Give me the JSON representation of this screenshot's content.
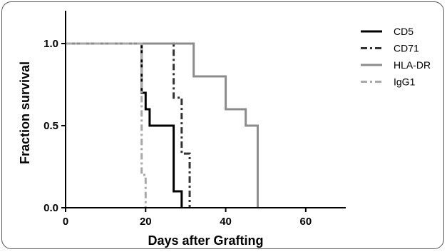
{
  "chart_data": {
    "type": "line",
    "subtype": "step (Kaplan-Meier survival curves)",
    "xlabel": "Days after Grafting",
    "ylabel": "Fraction survival",
    "xlim": [
      0,
      70
    ],
    "ylim": [
      0,
      1.2
    ],
    "x_ticks": [
      0,
      20,
      40,
      60
    ],
    "x_tick_labels": [
      "0",
      "20",
      "40",
      "60"
    ],
    "y_ticks": [
      0,
      0.5,
      1.0
    ],
    "y_tick_labels": [
      "0.0",
      "0.5",
      "1.0"
    ],
    "grid": false,
    "legend_position": "top-right",
    "series": [
      {
        "name": "CD5",
        "color": "#000000",
        "line_style": "solid",
        "steps": [
          [
            0,
            1.0
          ],
          [
            19,
            0.7
          ],
          [
            20,
            0.6
          ],
          [
            21,
            0.5
          ],
          [
            27,
            0.1
          ],
          [
            29,
            0.0
          ]
        ]
      },
      {
        "name": "CD71",
        "color": "#333333",
        "line_style": "dash-dot",
        "steps": [
          [
            0,
            1.0
          ],
          [
            27,
            0.67
          ],
          [
            29,
            0.33
          ],
          [
            31,
            0.0
          ]
        ]
      },
      {
        "name": "HLA-DR",
        "color": "#8c8c8c",
        "line_style": "solid",
        "steps": [
          [
            0,
            1.0
          ],
          [
            32,
            0.8
          ],
          [
            40,
            0.6
          ],
          [
            45,
            0.5
          ],
          [
            48,
            0.0
          ]
        ]
      },
      {
        "name": "IgG1",
        "color": "#a8a8a8",
        "line_style": "dash-dot",
        "steps": [
          [
            0,
            1.0
          ],
          [
            19,
            0.2
          ],
          [
            20,
            0.0
          ]
        ]
      }
    ]
  }
}
